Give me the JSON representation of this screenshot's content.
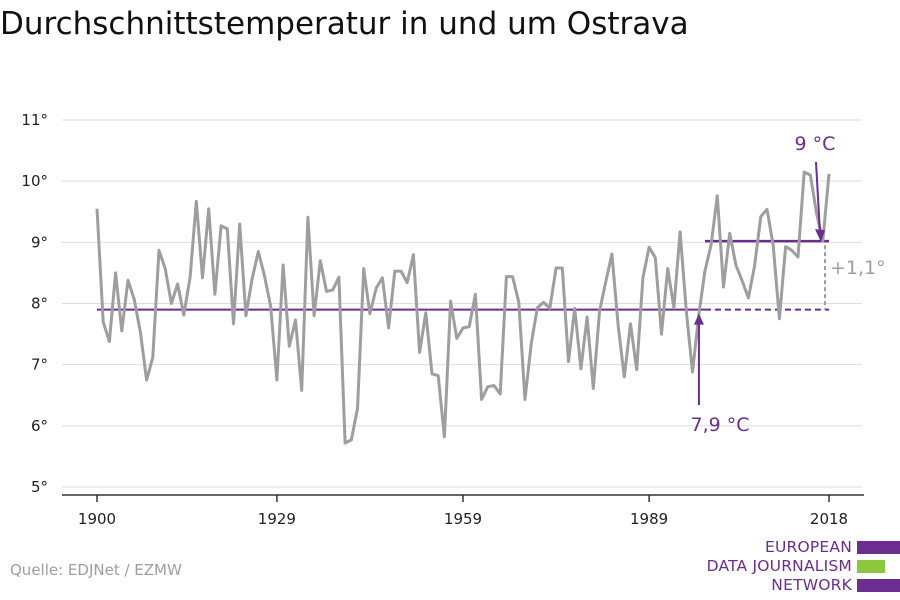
{
  "title": "Durchschnittstemperatur in und um Ostrava",
  "source": "Quelle: EDJNet / EZMW",
  "logo": {
    "lines": [
      "EUROPEAN",
      "DATA JOURNALISM",
      "NETWORK"
    ],
    "colors": [
      "#6b2d90",
      "#8dc63f",
      "#6b2d90"
    ]
  },
  "colors": {
    "series": "#9e9e9e",
    "accent": "#6b2d90",
    "grid": "#dddddd",
    "axis": "#333333"
  },
  "chart_data": {
    "type": "line",
    "title": "Durchschnittstemperatur in und um Ostrava",
    "xlabel": "",
    "ylabel": "",
    "xlim": [
      1900,
      2018
    ],
    "ylim": [
      5,
      11
    ],
    "xticks": [
      1900,
      1929,
      1959,
      1989,
      2018
    ],
    "xtick_labels": [
      "1900",
      "1929",
      "1959",
      "1989",
      "2018"
    ],
    "yticks": [
      5,
      6,
      7,
      8,
      9,
      10,
      11
    ],
    "ytick_labels": [
      "5°",
      "6°",
      "7°",
      "8°",
      "9°",
      "10°",
      "11°"
    ],
    "grid": true,
    "series": [
      {
        "x": [
          1900,
          1901,
          1902,
          1903,
          1904,
          1905,
          1906,
          1907,
          1908,
          1909,
          1910,
          1911,
          1912,
          1913,
          1914,
          1915,
          1916,
          1917,
          1918,
          1919,
          1920,
          1921,
          1922,
          1923,
          1924,
          1925,
          1926,
          1927,
          1928,
          1929,
          1930,
          1931,
          1932,
          1933,
          1934,
          1935,
          1936,
          1937,
          1938,
          1939,
          1940,
          1941,
          1942,
          1943,
          1944,
          1945,
          1946,
          1947,
          1948,
          1949,
          1950,
          1951,
          1952,
          1953,
          1954,
          1955,
          1956,
          1957,
          1958,
          1959,
          1960,
          1961,
          1962,
          1963,
          1964,
          1965,
          1966,
          1967,
          1968,
          1969,
          1970,
          1971,
          1972,
          1973,
          1974,
          1975,
          1976,
          1977,
          1978,
          1979,
          1980,
          1981,
          1982,
          1983,
          1984,
          1985,
          1986,
          1987,
          1988,
          1989,
          1990,
          1991,
          1992,
          1993,
          1994,
          1995,
          1996,
          1997,
          1998,
          1999,
          2000,
          2001,
          2002,
          2003,
          2004,
          2005,
          2006,
          2007,
          2008,
          2009,
          2010,
          2011,
          2012,
          2013,
          2014,
          2015,
          2016,
          2017,
          2018
        ],
        "y": [
          9.55,
          7.7,
          7.38,
          8.5,
          7.55,
          8.38,
          8.07,
          7.53,
          6.75,
          7.12,
          8.87,
          8.57,
          8.0,
          8.32,
          7.81,
          8.43,
          9.67,
          8.42,
          9.55,
          8.15,
          9.27,
          9.22,
          7.67,
          9.3,
          7.8,
          8.4,
          8.85,
          8.45,
          7.95,
          6.75,
          8.63,
          7.3,
          7.73,
          6.58,
          9.41,
          7.8,
          8.7,
          8.2,
          8.22,
          8.43,
          5.72,
          5.77,
          6.28,
          8.57,
          7.83,
          8.25,
          8.42,
          7.6,
          8.53,
          8.53,
          8.34,
          8.8,
          7.2,
          7.85,
          6.85,
          6.82,
          5.82,
          8.04,
          7.43,
          7.6,
          7.62,
          8.15,
          6.43,
          6.64,
          6.66,
          6.52,
          8.44,
          8.44,
          8.02,
          6.43,
          7.34,
          7.93,
          8.02,
          7.92,
          8.58,
          8.58,
          7.05,
          7.92,
          6.93,
          7.78,
          6.61,
          7.87,
          8.35,
          8.81,
          7.65,
          6.8,
          7.67,
          6.92,
          8.42,
          8.92,
          8.75,
          7.5,
          8.57,
          7.93,
          9.17,
          7.88,
          6.88,
          7.8,
          8.53,
          8.96,
          9.76,
          8.27,
          9.15,
          8.63,
          8.37,
          8.09,
          8.62,
          9.42,
          9.54,
          8.95,
          7.75,
          8.93,
          8.87,
          8.76,
          10.15,
          10.1,
          9.47,
          9.02,
          10.12
        ]
      }
    ],
    "annotations": {
      "baseline": {
        "label": "7,9 °C",
        "value": 7.9,
        "from": 1900,
        "to": 2018,
        "solid_until": 1998
      },
      "recent": {
        "label": "9 °C",
        "value": 9.02,
        "from": 1998,
        "to": 2018
      },
      "delta": {
        "label": "+1,1°"
      }
    }
  }
}
